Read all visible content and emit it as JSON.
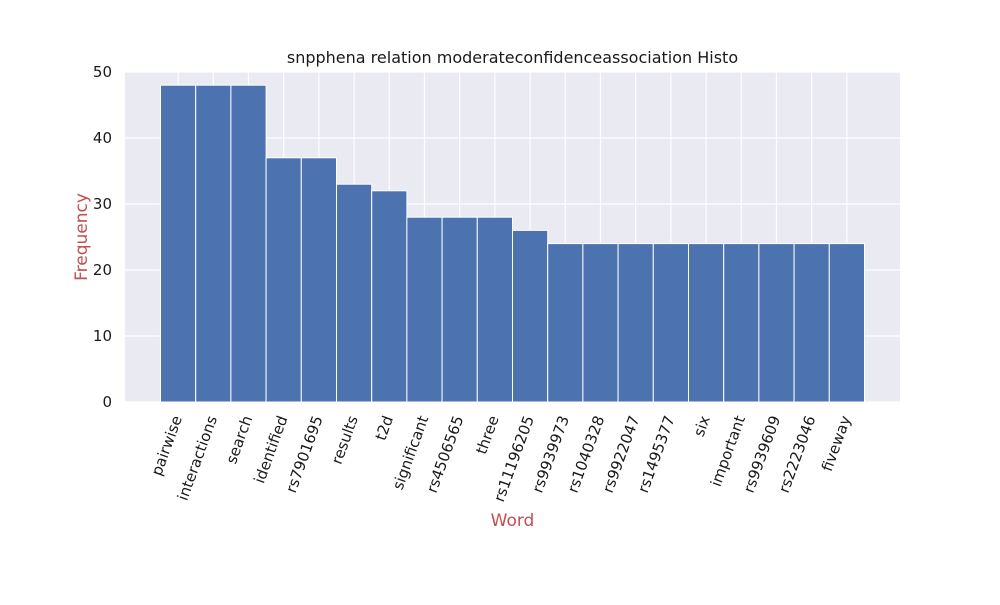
{
  "chart_data": {
    "type": "bar",
    "title": "snpphena relation moderateconfidenceassociation Histo",
    "xlabel": "Word",
    "ylabel": "Frequency",
    "categories": [
      "pairwise",
      "interactions",
      "search",
      "identified",
      "rs7901695",
      "results",
      "t2d",
      "significant",
      "rs4506565",
      "three",
      "rs11196205",
      "rs9939973",
      "rs1040328",
      "rs9922047",
      "rs1495377",
      "six",
      "important",
      "rs9939609",
      "rs2223046",
      "fiveway"
    ],
    "values": [
      48,
      48,
      48,
      37,
      37,
      33,
      32,
      28,
      28,
      28,
      26,
      24,
      24,
      24,
      24,
      24,
      24,
      24,
      24,
      24
    ],
    "ylim": [
      0,
      50
    ],
    "yticks": [
      0,
      10,
      20,
      30,
      40,
      50
    ],
    "grid": true,
    "colors": {
      "bar": "#4c72b0",
      "background": "#eaeaf2",
      "grid": "#ffffff",
      "axis_label": "#c44e52"
    }
  }
}
